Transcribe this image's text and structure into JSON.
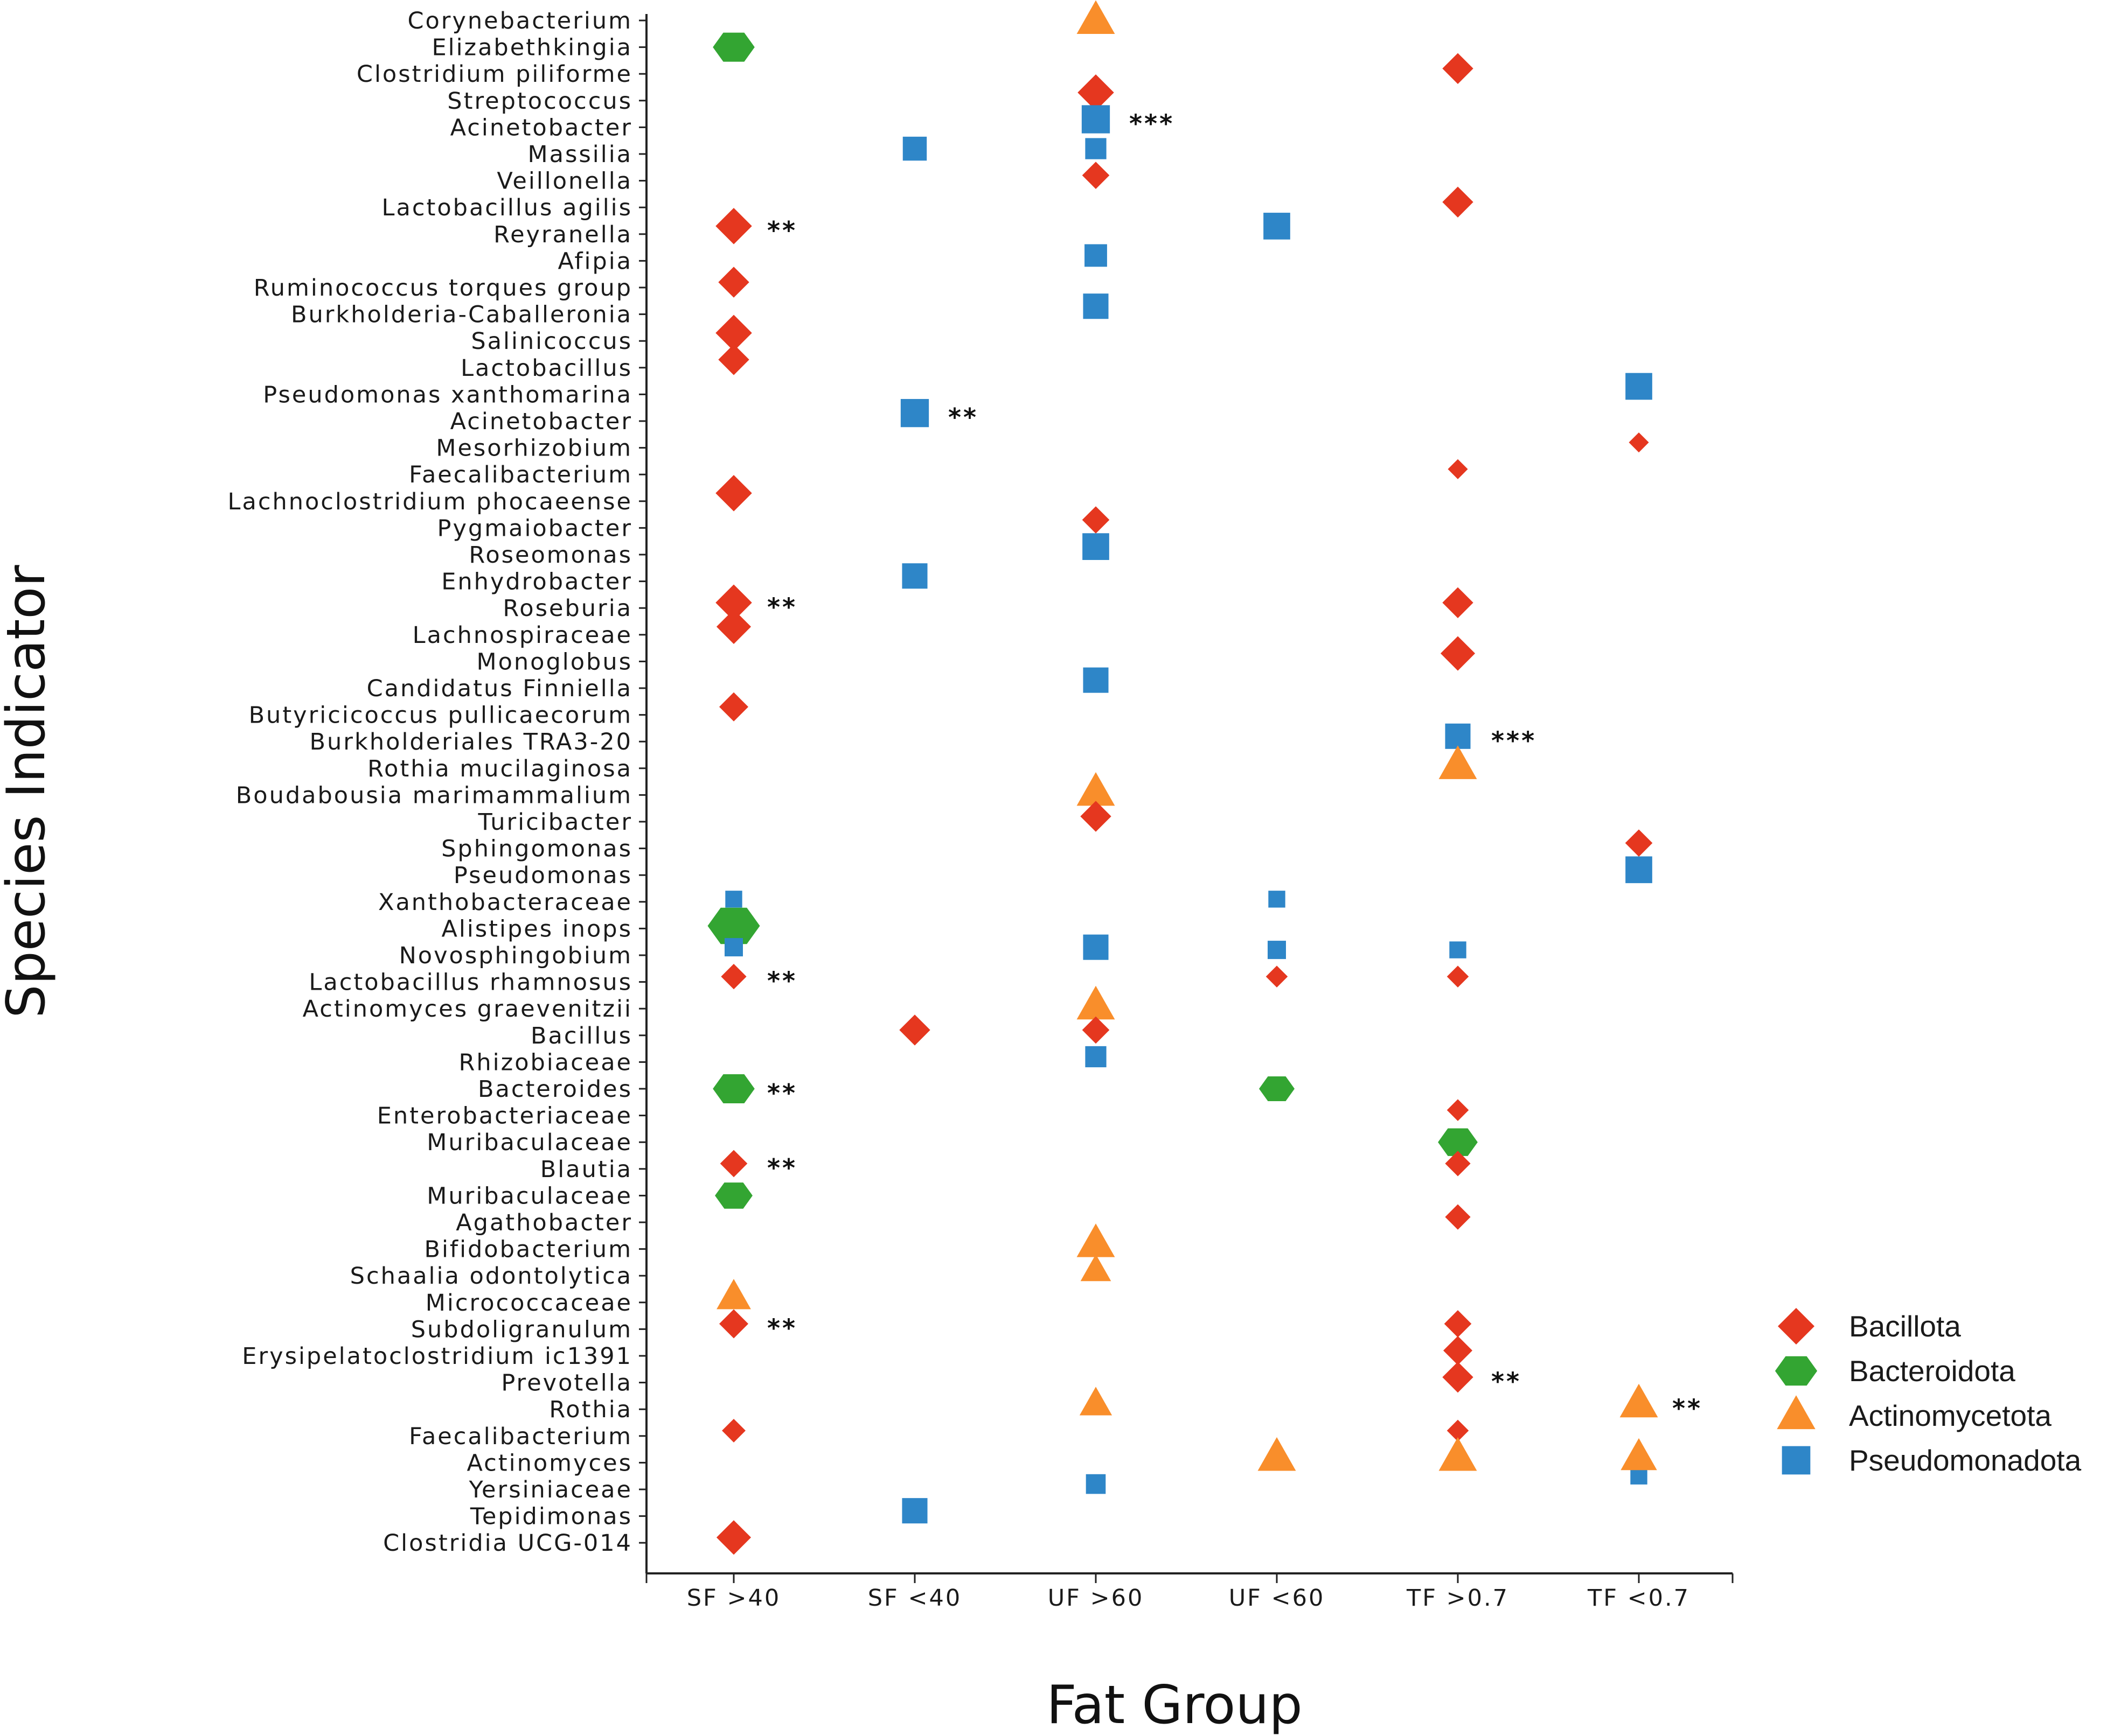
{
  "chart_data": {
    "type": "scatter",
    "xlabel": "Fat Group",
    "ylabel": "Species Indicator",
    "x_categories": [
      "SF >40",
      "SF <40",
      "UF >60",
      "UF <60",
      "TF >0.7",
      "TF <0.7"
    ],
    "y_categories": [
      "Corynebacterium",
      "Elizabethkingia",
      "Clostridium piliforme",
      "Streptococcus",
      "Acinetobacter",
      "Massilia",
      "Veillonella",
      "Lactobacillus agilis",
      "Reyranella",
      "Afipia",
      "Ruminococcus torques group",
      "Burkholderia-Caballeronia",
      "Salinicoccus",
      "Lactobacillus",
      "Pseudomonas xanthomarina",
      "Acinetobacter",
      "Mesorhizobium",
      "Faecalibacterium",
      "Lachnoclostridium phocaeense",
      "Pygmaiobacter",
      "Roseomonas",
      "Enhydrobacter",
      "Roseburia",
      "Lachnospiraceae",
      "Monoglobus",
      "Candidatus Finniella",
      "Butyricicoccus pullicaecorum",
      "Burkholderiales TRA3-20",
      "Rothia mucilaginosa",
      "Boudabousia marimammalium",
      "Turicibacter",
      "Sphingomonas",
      "Pseudomonas",
      "Xanthobacteraceae",
      "Alistipes inops",
      "Novosphingobium",
      "Lactobacillus rhamnosus",
      "Actinomyces graevenitzii",
      "Bacillus",
      "Rhizobiaceae",
      "Bacteroides",
      "Enterobacteriaceae",
      "Muribaculaceae",
      "Blautia",
      "Muribaculaceae",
      "Agathobacter",
      "Bifidobacterium",
      "Schaalia odontolytica",
      "Micrococcaceae",
      "Subdoligranulum",
      "Erysipelatoclostridium ic1391",
      "Prevotella",
      "Rothia",
      "Faecalibacterium",
      "Actinomyces",
      "Yersiniaceae",
      "Tepidimonas",
      "Clostridia UCG-014"
    ],
    "legend": [
      {
        "name": "Bacillota",
        "shape": "diamond",
        "color": "#e5371f"
      },
      {
        "name": "Bacteroidota",
        "shape": "hexagon",
        "color": "#33a532"
      },
      {
        "name": "Actinomycetota",
        "shape": "triangle",
        "color": "#f98e2b"
      },
      {
        "name": "Pseudomonadota",
        "shape": "square",
        "color": "#2e86c8"
      }
    ],
    "legend_position": "right",
    "points": [
      {
        "x": 2,
        "y": 0,
        "phylum": "Actinomycetota",
        "size": 1.0
      },
      {
        "x": 0,
        "y": 1,
        "phylum": "Bacteroidota",
        "size": 1.0
      },
      {
        "x": 4,
        "y": 1.8,
        "phylum": "Bacillota",
        "size": 0.85
      },
      {
        "x": 2,
        "y": 2.7,
        "phylum": "Bacillota",
        "size": 1.0
      },
      {
        "x": 2,
        "y": 3.7,
        "phylum": "Pseudomonadota",
        "size": 1.0
      },
      {
        "x": 1,
        "y": 4.8,
        "phylum": "Pseudomonadota",
        "size": 0.85
      },
      {
        "x": 2,
        "y": 4.8,
        "phylum": "Pseudomonadota",
        "size": 0.75
      },
      {
        "x": 2,
        "y": 5.8,
        "phylum": "Bacillota",
        "size": 0.75
      },
      {
        "x": 4,
        "y": 6.8,
        "phylum": "Bacillota",
        "size": 0.85
      },
      {
        "x": 0,
        "y": 7.7,
        "phylum": "Bacillota",
        "size": 1.0
      },
      {
        "x": 3,
        "y": 7.7,
        "phylum": "Pseudomonadota",
        "size": 0.95
      },
      {
        "x": 2,
        "y": 8.8,
        "phylum": "Pseudomonadota",
        "size": 0.8
      },
      {
        "x": 0,
        "y": 9.8,
        "phylum": "Bacillota",
        "size": 0.85
      },
      {
        "x": 2,
        "y": 10.7,
        "phylum": "Pseudomonadota",
        "size": 0.9
      },
      {
        "x": 0,
        "y": 11.7,
        "phylum": "Bacillota",
        "size": 1.0
      },
      {
        "x": 0,
        "y": 12.7,
        "phylum": "Bacillota",
        "size": 0.85
      },
      {
        "x": 5,
        "y": 13.7,
        "phylum": "Pseudomonadota",
        "size": 0.95
      },
      {
        "x": 1,
        "y": 14.7,
        "phylum": "Pseudomonadota",
        "size": 1.0
      },
      {
        "x": 5,
        "y": 15.8,
        "phylum": "Bacillota",
        "size": 0.55
      },
      {
        "x": 4,
        "y": 16.8,
        "phylum": "Bacillota",
        "size": 0.55
      },
      {
        "x": 0,
        "y": 17.7,
        "phylum": "Bacillota",
        "size": 1.0
      },
      {
        "x": 2,
        "y": 18.7,
        "phylum": "Bacillota",
        "size": 0.75
      },
      {
        "x": 2,
        "y": 19.7,
        "phylum": "Pseudomonadota",
        "size": 0.95
      },
      {
        "x": 1,
        "y": 20.8,
        "phylum": "Pseudomonadota",
        "size": 0.9
      },
      {
        "x": 0,
        "y": 21.8,
        "phylum": "Bacillota",
        "size": 1.0
      },
      {
        "x": 4,
        "y": 21.8,
        "phylum": "Bacillota",
        "size": 0.85
      },
      {
        "x": 0,
        "y": 22.7,
        "phylum": "Bacillota",
        "size": 0.95
      },
      {
        "x": 4,
        "y": 23.7,
        "phylum": "Bacillota",
        "size": 0.95
      },
      {
        "x": 2,
        "y": 24.7,
        "phylum": "Pseudomonadota",
        "size": 0.9
      },
      {
        "x": 0,
        "y": 25.7,
        "phylum": "Bacillota",
        "size": 0.8
      },
      {
        "x": 4,
        "y": 26.8,
        "phylum": "Pseudomonadota",
        "size": 0.9
      },
      {
        "x": 4,
        "y": 27.9,
        "phylum": "Actinomycetota",
        "size": 1.0
      },
      {
        "x": 2,
        "y": 28.9,
        "phylum": "Actinomycetota",
        "size": 1.0
      },
      {
        "x": 2,
        "y": 29.8,
        "phylum": "Bacillota",
        "size": 0.85
      },
      {
        "x": 5,
        "y": 30.8,
        "phylum": "Bacillota",
        "size": 0.75
      },
      {
        "x": 5,
        "y": 31.8,
        "phylum": "Pseudomonadota",
        "size": 0.95
      },
      {
        "x": 0,
        "y": 32.9,
        "phylum": "Pseudomonadota",
        "size": 0.6
      },
      {
        "x": 3,
        "y": 32.9,
        "phylum": "Pseudomonadota",
        "size": 0.6
      },
      {
        "x": 0,
        "y": 33.9,
        "phylum": "Bacteroidota",
        "size": 1.25
      },
      {
        "x": 0,
        "y": 34.7,
        "phylum": "Pseudomonadota",
        "size": 0.65
      },
      {
        "x": 2,
        "y": 34.7,
        "phylum": "Pseudomonadota",
        "size": 0.9
      },
      {
        "x": 3,
        "y": 34.8,
        "phylum": "Pseudomonadota",
        "size": 0.65
      },
      {
        "x": 4,
        "y": 34.8,
        "phylum": "Pseudomonadota",
        "size": 0.6
      },
      {
        "x": 0,
        "y": 35.8,
        "phylum": "Bacillota",
        "size": 0.7
      },
      {
        "x": 3,
        "y": 35.8,
        "phylum": "Bacillota",
        "size": 0.6
      },
      {
        "x": 4,
        "y": 35.8,
        "phylum": "Bacillota",
        "size": 0.6
      },
      {
        "x": 2,
        "y": 36.9,
        "phylum": "Actinomycetota",
        "size": 1.0
      },
      {
        "x": 1,
        "y": 37.8,
        "phylum": "Bacillota",
        "size": 0.85
      },
      {
        "x": 2,
        "y": 37.8,
        "phylum": "Bacillota",
        "size": 0.75
      },
      {
        "x": 2,
        "y": 38.8,
        "phylum": "Pseudomonadota",
        "size": 0.75
      },
      {
        "x": 0,
        "y": 40.0,
        "phylum": "Bacteroidota",
        "size": 1.0
      },
      {
        "x": 3,
        "y": 40.0,
        "phylum": "Bacteroidota",
        "size": 0.85
      },
      {
        "x": 4,
        "y": 40.8,
        "phylum": "Bacillota",
        "size": 0.6
      },
      {
        "x": 4,
        "y": 42.0,
        "phylum": "Bacteroidota",
        "size": 0.95
      },
      {
        "x": 0,
        "y": 42.8,
        "phylum": "Bacillota",
        "size": 0.75
      },
      {
        "x": 4,
        "y": 42.8,
        "phylum": "Bacillota",
        "size": 0.7
      },
      {
        "x": 0,
        "y": 44.0,
        "phylum": "Bacteroidota",
        "size": 0.9
      },
      {
        "x": 4,
        "y": 44.8,
        "phylum": "Bacillota",
        "size": 0.7
      },
      {
        "x": 2,
        "y": 45.8,
        "phylum": "Actinomycetota",
        "size": 1.0
      },
      {
        "x": 2,
        "y": 46.8,
        "phylum": "Actinomycetota",
        "size": 0.8
      },
      {
        "x": 0,
        "y": 47.8,
        "phylum": "Actinomycetota",
        "size": 0.9
      },
      {
        "x": 0,
        "y": 48.8,
        "phylum": "Bacillota",
        "size": 0.8
      },
      {
        "x": 4,
        "y": 48.8,
        "phylum": "Bacillota",
        "size": 0.75
      },
      {
        "x": 4,
        "y": 49.8,
        "phylum": "Bacillota",
        "size": 0.8
      },
      {
        "x": 4,
        "y": 50.8,
        "phylum": "Bacillota",
        "size": 0.85
      },
      {
        "x": 2,
        "y": 51.8,
        "phylum": "Actinomycetota",
        "size": 0.85
      },
      {
        "x": 5,
        "y": 51.8,
        "phylum": "Actinomycetota",
        "size": 1.0
      },
      {
        "x": 0,
        "y": 52.8,
        "phylum": "Bacillota",
        "size": 0.65
      },
      {
        "x": 4,
        "y": 52.8,
        "phylum": "Bacillota",
        "size": 0.6
      },
      {
        "x": 3,
        "y": 53.8,
        "phylum": "Actinomycetota",
        "size": 1.0
      },
      {
        "x": 4,
        "y": 53.8,
        "phylum": "Actinomycetota",
        "size": 1.0
      },
      {
        "x": 5,
        "y": 54.5,
        "phylum": "Pseudomonadota",
        "size": 0.6
      },
      {
        "x": 5,
        "y": 53.8,
        "phylum": "Actinomycetota",
        "size": 0.95
      },
      {
        "x": 2,
        "y": 54.8,
        "phylum": "Pseudomonadota",
        "size": 0.7
      },
      {
        "x": 1,
        "y": 55.8,
        "phylum": "Pseudomonadota",
        "size": 0.9
      },
      {
        "x": 0,
        "y": 56.8,
        "phylum": "Bacillota",
        "size": 0.95
      }
    ],
    "significance": [
      {
        "x": 2,
        "y": 3.7,
        "label": "***"
      },
      {
        "x": 0,
        "y": 7.7,
        "label": "**"
      },
      {
        "x": 1,
        "y": 14.7,
        "label": "**"
      },
      {
        "x": 0,
        "y": 21.8,
        "label": "**"
      },
      {
        "x": 4,
        "y": 26.8,
        "label": "***"
      },
      {
        "x": 0,
        "y": 35.8,
        "label": "**"
      },
      {
        "x": 0,
        "y": 40.0,
        "label": "**"
      },
      {
        "x": 0,
        "y": 42.8,
        "label": "**"
      },
      {
        "x": 0,
        "y": 48.8,
        "label": "**"
      },
      {
        "x": 4,
        "y": 50.8,
        "label": "**"
      },
      {
        "x": 5,
        "y": 51.8,
        "label": "**"
      }
    ]
  }
}
